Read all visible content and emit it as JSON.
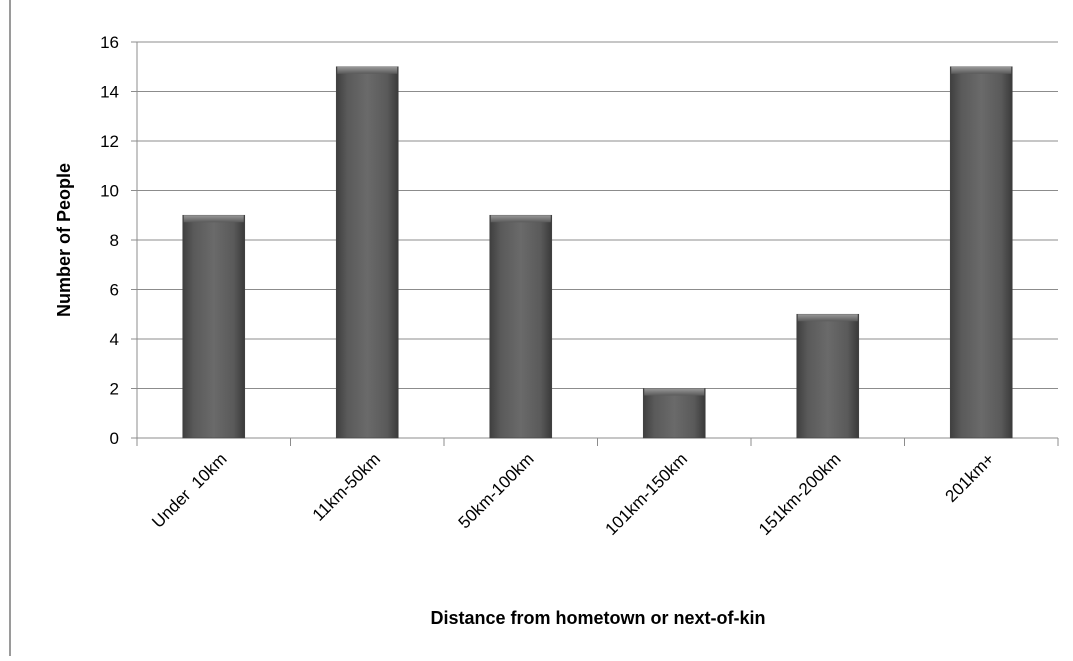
{
  "chart_data": {
    "type": "bar",
    "categories": [
      "Under  10km",
      "11km-50km",
      "50km-100km",
      "101km-150km",
      "151km-200km",
      "201km+"
    ],
    "values": [
      9,
      15,
      9,
      2,
      5,
      15
    ],
    "title": "",
    "xlabel": "Distance from hometown or next-of-kin",
    "ylabel": "Number of People",
    "ylim": [
      0,
      16
    ],
    "yticks": [
      0,
      2,
      4,
      6,
      8,
      10,
      12,
      14,
      16
    ],
    "grid": true,
    "legend": "none",
    "bar_color": "#5e5e5e",
    "grid_color": "#8c8c8c",
    "axis_color": "#8c8c8c"
  }
}
